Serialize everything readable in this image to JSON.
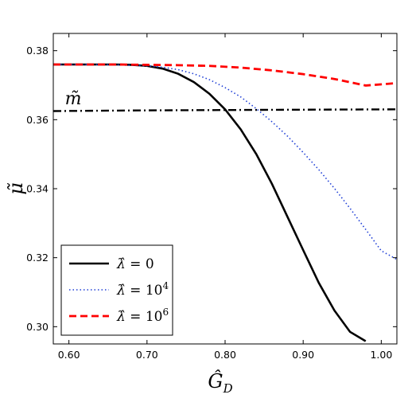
{
  "chart_data": {
    "type": "line",
    "xlabel": "Ĝ",
    "xlabel_subscript": "D",
    "ylabel": "μ̃",
    "xlim": [
      0.58,
      1.02
    ],
    "ylim": [
      0.295,
      0.385
    ],
    "xticks": [
      0.6,
      0.7,
      0.8,
      0.9,
      1.0
    ],
    "xtick_labels": [
      "0.60",
      "0.70",
      "0.80",
      "0.90",
      "1.00"
    ],
    "yticks": [
      0.3,
      0.32,
      0.34,
      0.36,
      0.38
    ],
    "ytick_labels": [
      "0.30",
      "0.32",
      "0.34",
      "0.36",
      "0.38"
    ],
    "grid": false,
    "legend_position": "lower-left",
    "annotation": {
      "text": "m̃",
      "x": 0.6,
      "y": 0.3645
    },
    "series": [
      {
        "name": "λ̂ = 0",
        "legend_math": "λ̂",
        "legend_rest": " = 0",
        "color": "#000000",
        "style": "solid",
        "x": [
          0.58,
          0.62,
          0.66,
          0.68,
          0.7,
          0.72,
          0.74,
          0.76,
          0.78,
          0.8,
          0.82,
          0.84,
          0.86,
          0.88,
          0.9,
          0.92,
          0.94,
          0.96,
          0.98
        ],
        "y": [
          0.376,
          0.376,
          0.376,
          0.3759,
          0.3756,
          0.3748,
          0.3733,
          0.3709,
          0.3675,
          0.363,
          0.3572,
          0.35,
          0.3414,
          0.3318,
          0.3222,
          0.3127,
          0.3047,
          0.2985,
          0.2958
        ]
      },
      {
        "name": "λ̂ = 10⁴",
        "legend_math": "λ̂",
        "legend_rest": " = 10",
        "legend_sup": "4",
        "color": "#1f3fd6",
        "style": "dotted",
        "x": [
          0.58,
          0.62,
          0.66,
          0.7,
          0.72,
          0.74,
          0.76,
          0.78,
          0.8,
          0.82,
          0.84,
          0.86,
          0.88,
          0.9,
          0.92,
          0.94,
          0.96,
          0.98,
          1.0,
          1.02
        ],
        "y": [
          0.376,
          0.376,
          0.3759,
          0.3756,
          0.3752,
          0.3745,
          0.3733,
          0.3716,
          0.3693,
          0.3666,
          0.3632,
          0.3594,
          0.3552,
          0.3505,
          0.3455,
          0.3401,
          0.3343,
          0.3282,
          0.322,
          0.3195
        ]
      },
      {
        "name": "λ̂ = 10⁶",
        "legend_math": "λ̂",
        "legend_rest": " = 10",
        "legend_sup": "6",
        "color": "#ff0000",
        "style": "dashed",
        "x": [
          0.58,
          0.62,
          0.66,
          0.7,
          0.74,
          0.78,
          0.82,
          0.86,
          0.9,
          0.94,
          0.98,
          1.02
        ],
        "y": [
          0.376,
          0.376,
          0.376,
          0.3759,
          0.3758,
          0.3756,
          0.3751,
          0.3743,
          0.3732,
          0.3718,
          0.3699,
          0.3706
        ]
      },
      {
        "name": "m̃",
        "legend": false,
        "color": "#000000",
        "style": "dashdot",
        "x": [
          0.58,
          0.7,
          0.8,
          0.9,
          1.02
        ],
        "y": [
          0.3625,
          0.3627,
          0.3628,
          0.3629,
          0.363
        ]
      }
    ]
  }
}
